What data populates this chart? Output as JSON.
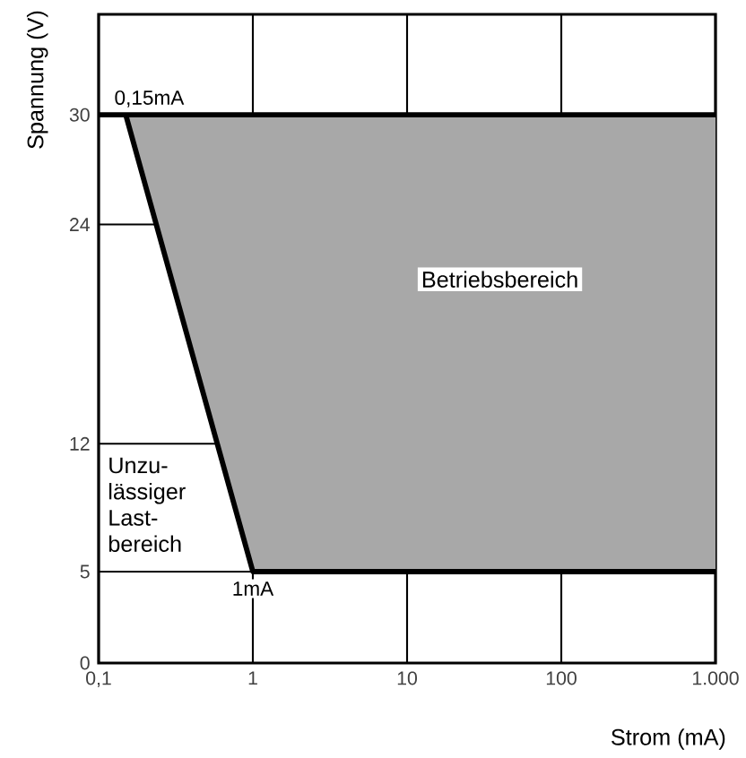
{
  "chart_data": {
    "type": "line",
    "xlabel": "Strom (mA)",
    "ylabel": "Spannung (V)",
    "log": "x",
    "grid": true,
    "xlim": [
      0.1,
      1000
    ],
    "ylim": [
      0,
      35.5
    ],
    "xticks": [
      {
        "value": 0.1,
        "label": "0,1"
      },
      1,
      10,
      100,
      {
        "value": 1000,
        "label": "1.000"
      }
    ],
    "yticks": [
      0,
      5,
      12,
      24,
      30
    ],
    "series": [
      {
        "x": [
          0.15,
          1,
          1000
        ],
        "values": [
          30,
          5,
          5
        ],
        "lower": [
          30,
          5,
          5
        ],
        "upper": [
          30,
          30,
          30
        ],
        "color": "#000000"
      }
    ],
    "ref_lines": [
      {
        "axis": "y",
        "value": 30,
        "color": "#000000"
      }
    ],
    "annotations": [
      {
        "text": "0,15mA",
        "x": 0.15,
        "y": 30
      },
      {
        "text": "1mA",
        "x": 1,
        "y": 5
      },
      "Betriebsbereich",
      "Unzu-lässiger Last-bereich"
    ]
  }
}
